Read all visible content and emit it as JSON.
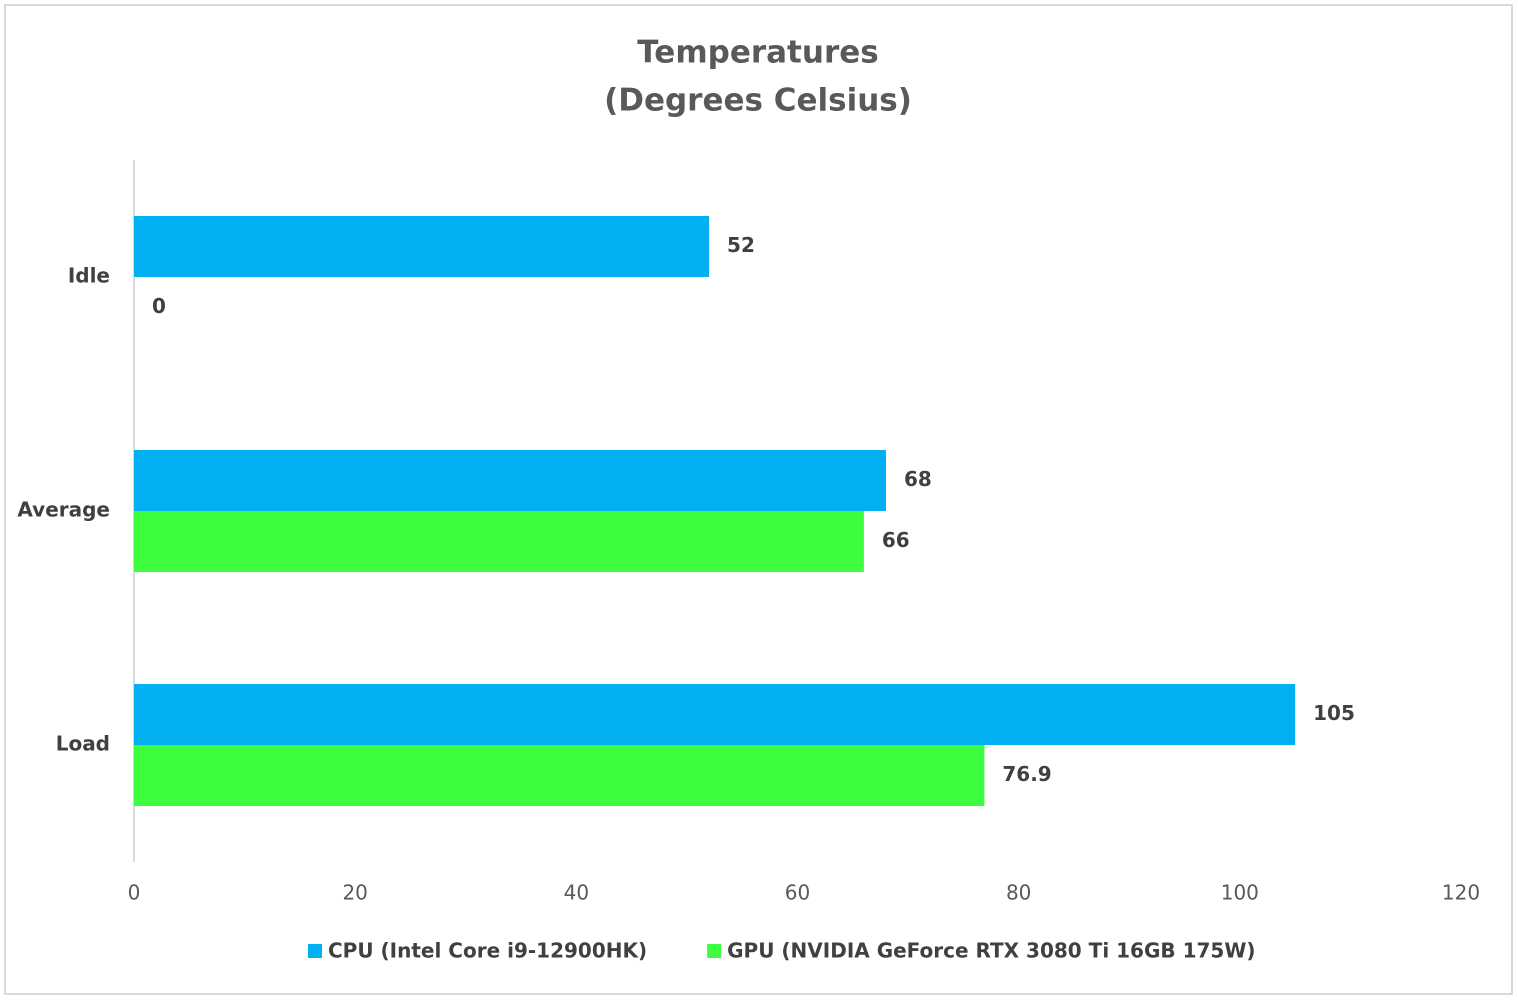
{
  "chart_data": {
    "type": "hbar",
    "title": "Temperatures",
    "subtitle": "(Degrees Celsius)",
    "categories": [
      "Idle",
      "Average",
      "Load"
    ],
    "series": [
      {
        "name": "CPU (Intel Core i9-12900HK)",
        "color": "#00b0f0",
        "values": [
          52,
          68,
          105
        ]
      },
      {
        "name": "GPU (NVIDIA GeForce RTX 3080 Ti 16GB 175W)",
        "color": "#3efc3e",
        "values": [
          0,
          66,
          76.9
        ]
      }
    ],
    "xlim": [
      0,
      120
    ],
    "xticks": [
      0,
      20,
      40,
      60,
      80,
      100,
      120
    ],
    "legend": "bottom"
  }
}
